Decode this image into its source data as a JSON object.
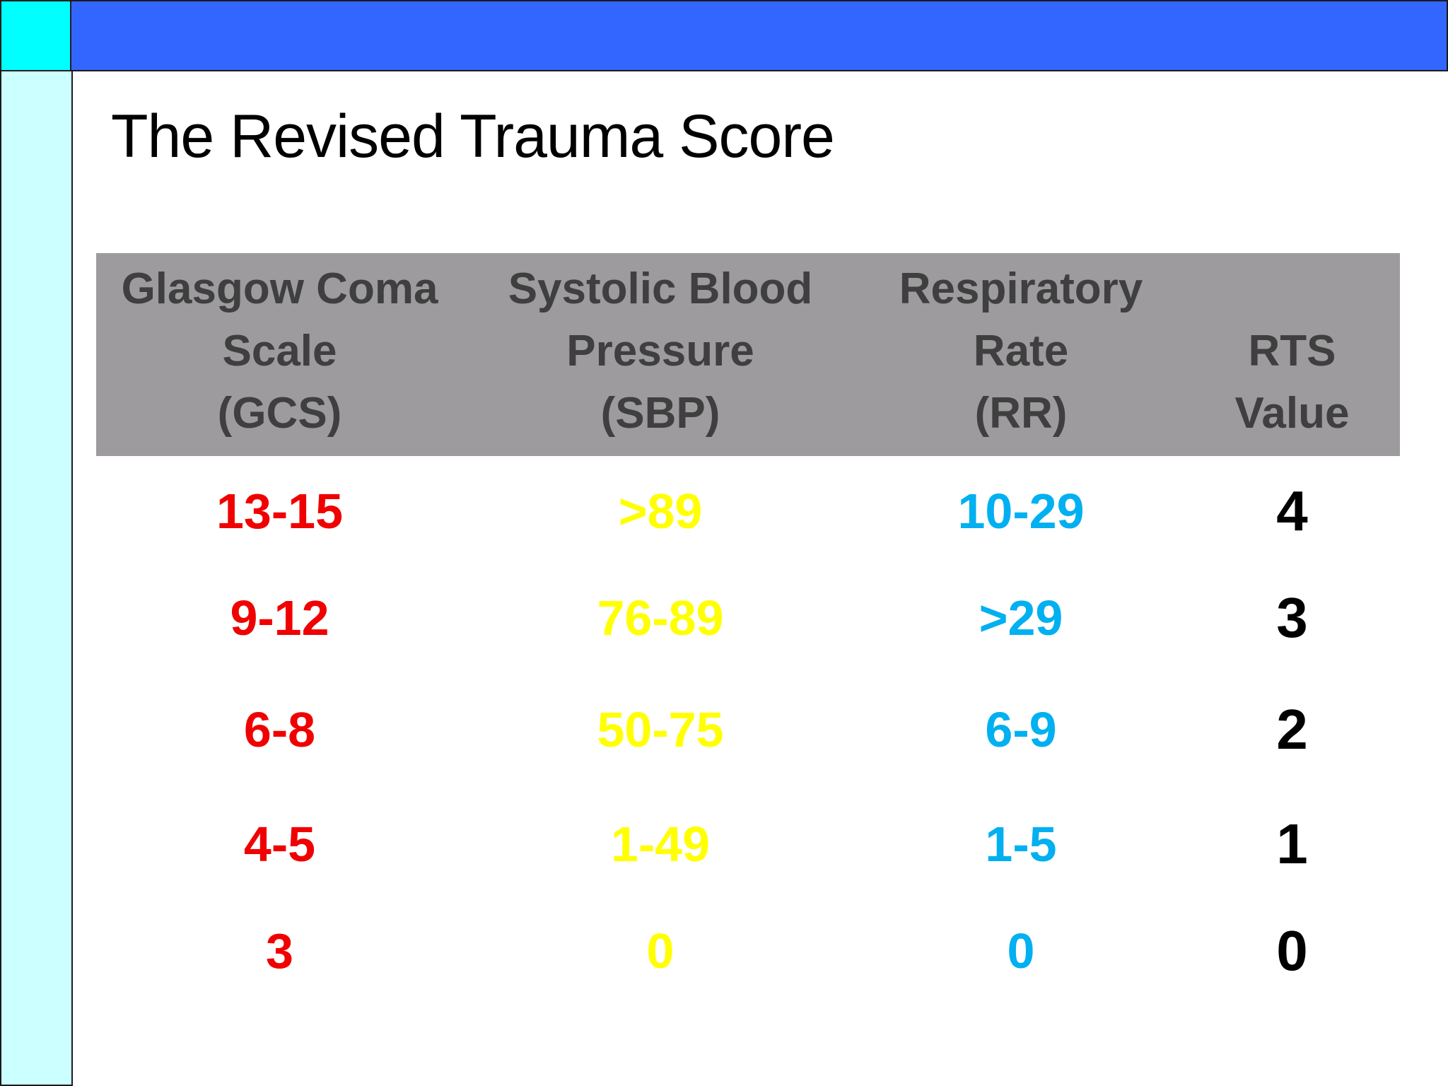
{
  "colors": {
    "corner": "#00ffff",
    "top_bar": "#3366ff",
    "left_bar": "#ccffff",
    "header_bg": "#9d9b9e",
    "header_text": "#3f3f3f",
    "gcs": "#f00000",
    "sbp": "#ffff00",
    "rr": "#00b0f0",
    "rts": "#000000"
  },
  "slide": {
    "title": "The Revised Trauma Score"
  },
  "table": {
    "headers": [
      {
        "lines": [
          "Glasgow Coma",
          "Scale",
          "(GCS)"
        ]
      },
      {
        "lines": [
          "Systolic Blood",
          "Pressure",
          "(SBP)"
        ]
      },
      {
        "lines": [
          "Respiratory",
          "Rate",
          "(RR)"
        ]
      },
      {
        "lines": [
          "RTS",
          "Value"
        ]
      }
    ],
    "rows": [
      {
        "gcs": "13-15",
        "sbp": ">89",
        "rr": "10-29",
        "rts": "4"
      },
      {
        "gcs": "9-12",
        "sbp": "76-89",
        "rr": ">29",
        "rts": "3"
      },
      {
        "gcs": "6-8",
        "sbp": "50-75",
        "rr": "6-9",
        "rts": "2"
      },
      {
        "gcs": "4-5",
        "sbp": "1-49",
        "rr": "1-5",
        "rts": "1"
      },
      {
        "gcs": "3",
        "sbp": "0",
        "rr": "0",
        "rts": "0"
      }
    ]
  }
}
